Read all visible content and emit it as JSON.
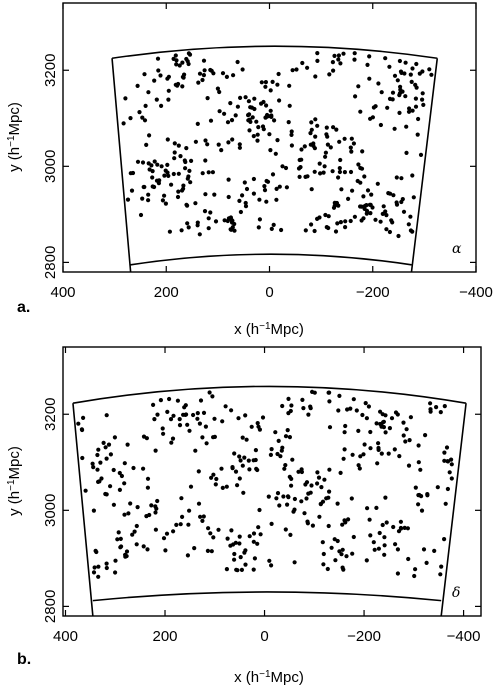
{
  "chart_data": [
    {
      "type": "scatter",
      "panel_label": "a.",
      "slice_label": "α",
      "xlabel_parts": [
        "x (h",
        "−1",
        "Mpc)"
      ],
      "ylabel_parts": [
        "y (h",
        "−1",
        "Mpc)"
      ],
      "xlim": [
        400,
        -400
      ],
      "ylim": [
        2780,
        3340
      ],
      "xticks": [
        400,
        200,
        0,
        -200,
        -400
      ],
      "xtick_labels": [
        "400",
        "200",
        "0",
        "−200",
        "−400"
      ],
      "yticks": [
        2800,
        3000,
        3200
      ],
      "ytick_labels": [
        "2800",
        "3000",
        "3200"
      ],
      "boundary": {
        "far_arc_y": [
          3225,
          3250,
          3225
        ],
        "near_arc_y": [
          2795,
          2817,
          2795
        ],
        "left_edge_x": [
          305,
          269
        ],
        "right_edge_x": [
          -325,
          -275
        ]
      },
      "point_count": 440,
      "points_seed": 11
    },
    {
      "type": "scatter",
      "panel_label": "b.",
      "slice_label": "δ",
      "xlabel_parts": [
        "x (h",
        "−1",
        "Mpc)"
      ],
      "ylabel_parts": [
        "y (h",
        "−1",
        "Mpc)"
      ],
      "xlim": [
        405,
        -435
      ],
      "ylim": [
        2780,
        3340
      ],
      "xticks": [
        400,
        200,
        0,
        -200,
        -400
      ],
      "xtick_labels": [
        "400",
        "200",
        "0",
        "−200",
        "−400"
      ],
      "yticks": [
        2800,
        3000,
        3200
      ],
      "ytick_labels": [
        "2800",
        "3000",
        "3200"
      ],
      "boundary": {
        "far_arc_y": [
          3223,
          3258,
          3223
        ],
        "near_arc_y": [
          2812,
          2830,
          2812
        ],
        "left_edge_x": [
          385,
          345
        ],
        "right_edge_x": [
          -405,
          -355
        ]
      },
      "point_count": 420,
      "points_seed": 29
    }
  ]
}
